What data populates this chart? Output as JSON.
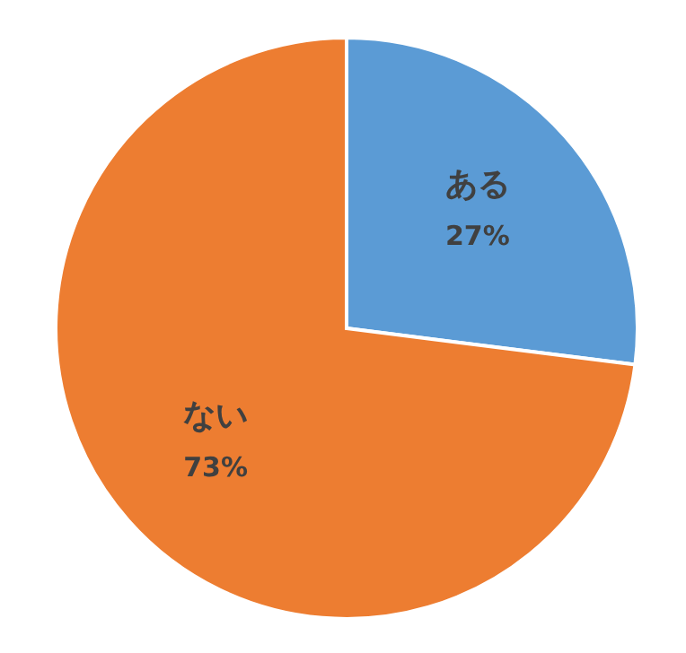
{
  "chart_data": {
    "type": "pie",
    "categories": [
      "ある",
      "ない"
    ],
    "values": [
      27,
      73
    ],
    "colors": [
      "#5b9bd5",
      "#ed7d31"
    ],
    "value_labels": [
      "27%",
      "73%"
    ]
  }
}
